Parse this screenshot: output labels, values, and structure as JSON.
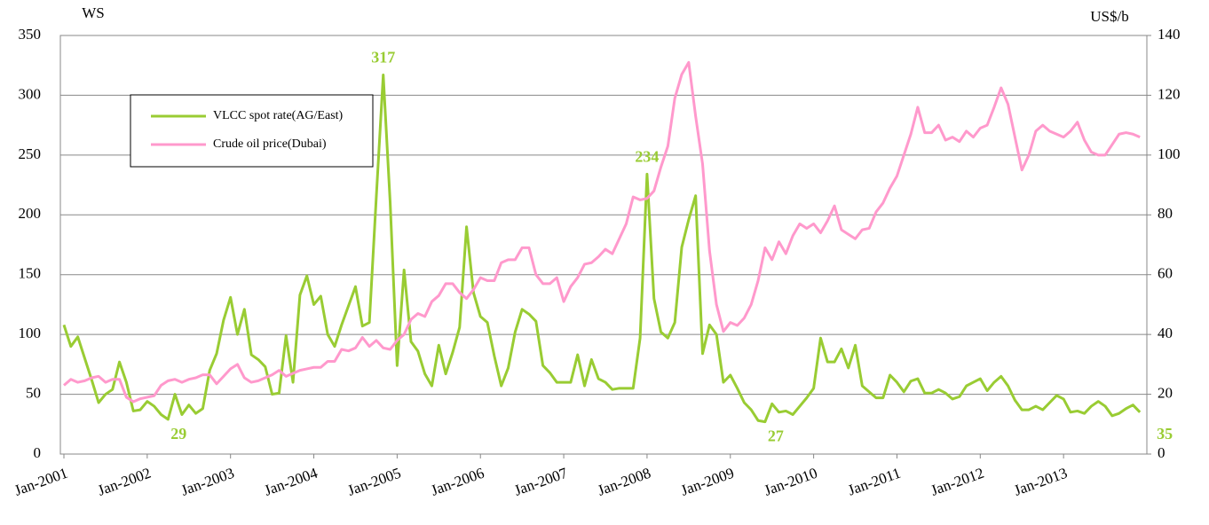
{
  "chart_data": {
    "type": "line",
    "y_label": "WS",
    "y2_label": "US$/b",
    "categories": [
      "Jan-2001",
      null,
      null,
      null,
      null,
      null,
      null,
      null,
      null,
      null,
      null,
      null,
      "Jan-2002",
      null,
      null,
      null,
      null,
      null,
      null,
      null,
      null,
      null,
      null,
      null,
      "Jan-2003",
      null,
      null,
      null,
      null,
      null,
      null,
      null,
      null,
      null,
      null,
      null,
      "Jan-2004",
      null,
      null,
      null,
      null,
      null,
      null,
      null,
      null,
      null,
      null,
      null,
      "Jan-2005",
      null,
      null,
      null,
      null,
      null,
      null,
      null,
      null,
      null,
      null,
      null,
      "Jan-2006",
      null,
      null,
      null,
      null,
      null,
      null,
      null,
      null,
      null,
      null,
      null,
      "Jan-2007",
      null,
      null,
      null,
      null,
      null,
      null,
      null,
      null,
      null,
      null,
      null,
      "Jan-2008",
      null,
      null,
      null,
      null,
      null,
      null,
      null,
      null,
      null,
      null,
      null,
      "Jan-2009",
      null,
      null,
      null,
      null,
      null,
      null,
      null,
      null,
      null,
      null,
      null,
      "Jan-2010",
      null,
      null,
      null,
      null,
      null,
      null,
      null,
      null,
      null,
      null,
      null,
      "Jan-2011",
      null,
      null,
      null,
      null,
      null,
      null,
      null,
      null,
      null,
      null,
      null,
      "Jan-2012",
      null,
      null,
      null,
      null,
      null,
      null,
      null,
      null,
      null,
      null,
      null,
      "Jan-2013",
      null,
      null,
      null,
      null,
      null,
      null,
      null,
      null,
      null,
      null,
      null
    ],
    "series": [
      {
        "name": "VLCC spot rate(AG/East)",
        "color": "#99cc33",
        "axis": "y",
        "values": [
          108,
          90,
          98,
          80,
          62,
          43,
          50,
          54,
          77,
          60,
          36,
          37,
          44,
          40,
          33,
          29,
          50,
          33,
          41,
          34,
          38,
          70,
          84,
          112,
          131,
          100,
          121,
          83,
          79,
          73,
          50,
          51,
          99,
          60,
          133,
          149,
          125,
          132,
          100,
          90,
          108,
          124,
          140,
          107,
          110,
          215,
          317,
          210,
          74,
          154,
          94,
          86,
          67,
          57,
          91,
          67,
          85,
          106,
          190,
          135,
          115,
          110,
          82,
          57,
          72,
          102,
          121,
          117,
          111,
          74,
          68,
          60,
          60,
          60,
          83,
          57,
          79,
          63,
          60,
          54,
          55,
          55,
          55,
          97,
          234,
          130,
          102,
          97,
          110,
          173,
          196,
          216,
          84,
          108,
          100,
          60,
          66,
          55,
          43,
          37,
          28,
          27,
          42,
          35,
          36,
          33,
          40,
          47,
          55,
          97,
          77,
          77,
          88,
          72,
          91,
          57,
          52,
          47,
          47,
          66,
          60,
          52,
          61,
          63,
          51,
          51,
          54,
          51,
          46,
          48,
          57,
          60,
          63,
          53,
          60,
          65,
          57,
          45,
          37,
          37,
          40,
          37,
          43,
          49,
          46,
          35,
          36,
          34,
          40,
          44,
          40,
          32,
          34,
          38,
          41,
          35
        ],
        "value_labels": [
          null,
          null,
          null,
          null,
          null,
          null,
          null,
          null,
          null,
          null,
          null,
          null,
          null,
          null,
          null,
          "29",
          null,
          null,
          null,
          null,
          null,
          null,
          null,
          null,
          null,
          null,
          null,
          null,
          null,
          null,
          null,
          null,
          null,
          null,
          null,
          null,
          null,
          null,
          null,
          null,
          null,
          null,
          null,
          null,
          null,
          null,
          "317",
          null,
          null,
          null,
          null,
          null,
          null,
          null,
          null,
          null,
          null,
          null,
          null,
          null,
          null,
          null,
          null,
          null,
          null,
          null,
          null,
          null,
          null,
          null,
          null,
          null,
          null,
          null,
          null,
          null,
          null,
          null,
          null,
          null,
          null,
          null,
          null,
          null,
          "234",
          null,
          null,
          null,
          null,
          null,
          null,
          null,
          null,
          null,
          null,
          null,
          null,
          null,
          null,
          null,
          null,
          "27",
          null,
          null,
          null,
          null,
          null,
          null,
          null,
          null,
          null,
          null,
          null,
          null,
          null,
          null,
          null,
          null,
          null,
          null,
          null,
          null,
          null,
          null,
          null,
          null,
          null,
          null,
          null,
          null,
          null,
          null,
          null,
          null,
          null,
          null,
          null,
          null,
          null,
          null,
          null,
          null,
          null,
          null,
          null,
          null,
          null,
          null,
          null,
          null,
          null,
          null,
          null,
          null,
          null,
          "35"
        ]
      },
      {
        "name": "Crude oil price(Dubai)",
        "color": "#ff99cc",
        "axis": "y2",
        "values": [
          23,
          25,
          24,
          24.5,
          25.5,
          26,
          24,
          25,
          25,
          19,
          17.5,
          18.5,
          19,
          19.5,
          23,
          24.5,
          25,
          24,
          25,
          25.5,
          26.5,
          26.5,
          23.5,
          26,
          28.5,
          30,
          25.5,
          24,
          24.5,
          25.5,
          26.5,
          28,
          26,
          27,
          28,
          28.5,
          29,
          29,
          31,
          31,
          35,
          34.5,
          35.5,
          39,
          36,
          38,
          35.5,
          35,
          38,
          40,
          45,
          47,
          46,
          51,
          53,
          57,
          57,
          54,
          52,
          55,
          59,
          58,
          58,
          64,
          65,
          65,
          69,
          69,
          60,
          57,
          57,
          59,
          51,
          56,
          59,
          63.5,
          64,
          66,
          68.5,
          67,
          72,
          77,
          86,
          85,
          85.5,
          88,
          96,
          103,
          119,
          127,
          131,
          113,
          97,
          68,
          50,
          41,
          44,
          43,
          45.5,
          50,
          58,
          69,
          65,
          71,
          67,
          73,
          77,
          75.5,
          77,
          74,
          78,
          83,
          75,
          73.5,
          72,
          75,
          75.5,
          81,
          84,
          89,
          93,
          100,
          107,
          116,
          107.5,
          107.5,
          110,
          105,
          106,
          104.5,
          108,
          106,
          109,
          110,
          116,
          122.5,
          117,
          106,
          95,
          100,
          108,
          110,
          108,
          107,
          106,
          108,
          111,
          105,
          101,
          100,
          100,
          103.5,
          107,
          107.5,
          107,
          106
        ]
      }
    ],
    "ylim": [
      0,
      350
    ],
    "yticks": [
      0,
      50,
      100,
      150,
      200,
      250,
      300,
      350
    ],
    "y2lim": [
      0,
      140
    ],
    "y2ticks": [
      0,
      20,
      40,
      60,
      80,
      100,
      120,
      140
    ],
    "grid": true,
    "legend": "upper left"
  }
}
